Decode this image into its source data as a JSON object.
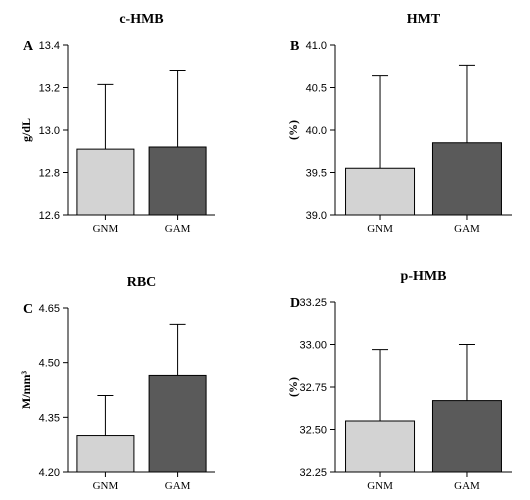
{
  "chart_data": [
    {
      "type": "bar",
      "panel": "A",
      "title": "c-HMB",
      "ylabel": "g/dL",
      "ylim": [
        12.6,
        13.4
      ],
      "yticks": [
        "12.6",
        "12.8",
        "13.0",
        "13.2",
        "13.4"
      ],
      "categories": [
        "GNM",
        "GAM"
      ],
      "values": [
        12.91,
        12.92
      ],
      "errors": [
        0.305,
        0.36
      ],
      "colors": [
        "#d3d3d3",
        "#5a5a5a"
      ]
    },
    {
      "type": "bar",
      "panel": "B",
      "title": "HMT",
      "ylabel": "(%)",
      "ylim": [
        39.0,
        41.0
      ],
      "yticks": [
        "39.0",
        "39.5",
        "40.0",
        "40.5",
        "41.0"
      ],
      "categories": [
        "GNM",
        "GAM"
      ],
      "values": [
        39.55,
        39.85
      ],
      "errors": [
        1.09,
        0.91
      ],
      "colors": [
        "#d3d3d3",
        "#5a5a5a"
      ]
    },
    {
      "type": "bar",
      "panel": "C",
      "title": "RBC",
      "ylabel": "M/mm³",
      "ylim": [
        4.2,
        4.65
      ],
      "yticks": [
        "4.20",
        "4.35",
        "4.50",
        "4.65"
      ],
      "categories": [
        "GNM",
        "GAM"
      ],
      "values": [
        4.3,
        4.465
      ],
      "errors": [
        0.11,
        0.14
      ],
      "colors": [
        "#d3d3d3",
        "#5a5a5a"
      ]
    },
    {
      "type": "bar",
      "panel": "D",
      "title": "p-HMB",
      "ylabel": "(%)",
      "ylim": [
        32.25,
        33.25
      ],
      "yticks": [
        "32.25",
        "32.50",
        "32.75",
        "33.00",
        "33.25"
      ],
      "categories": [
        "GNM",
        "GAM"
      ],
      "values": [
        32.55,
        32.67
      ],
      "errors": [
        0.42,
        0.33
      ],
      "colors": [
        "#d3d3d3",
        "#5a5a5a"
      ]
    }
  ]
}
